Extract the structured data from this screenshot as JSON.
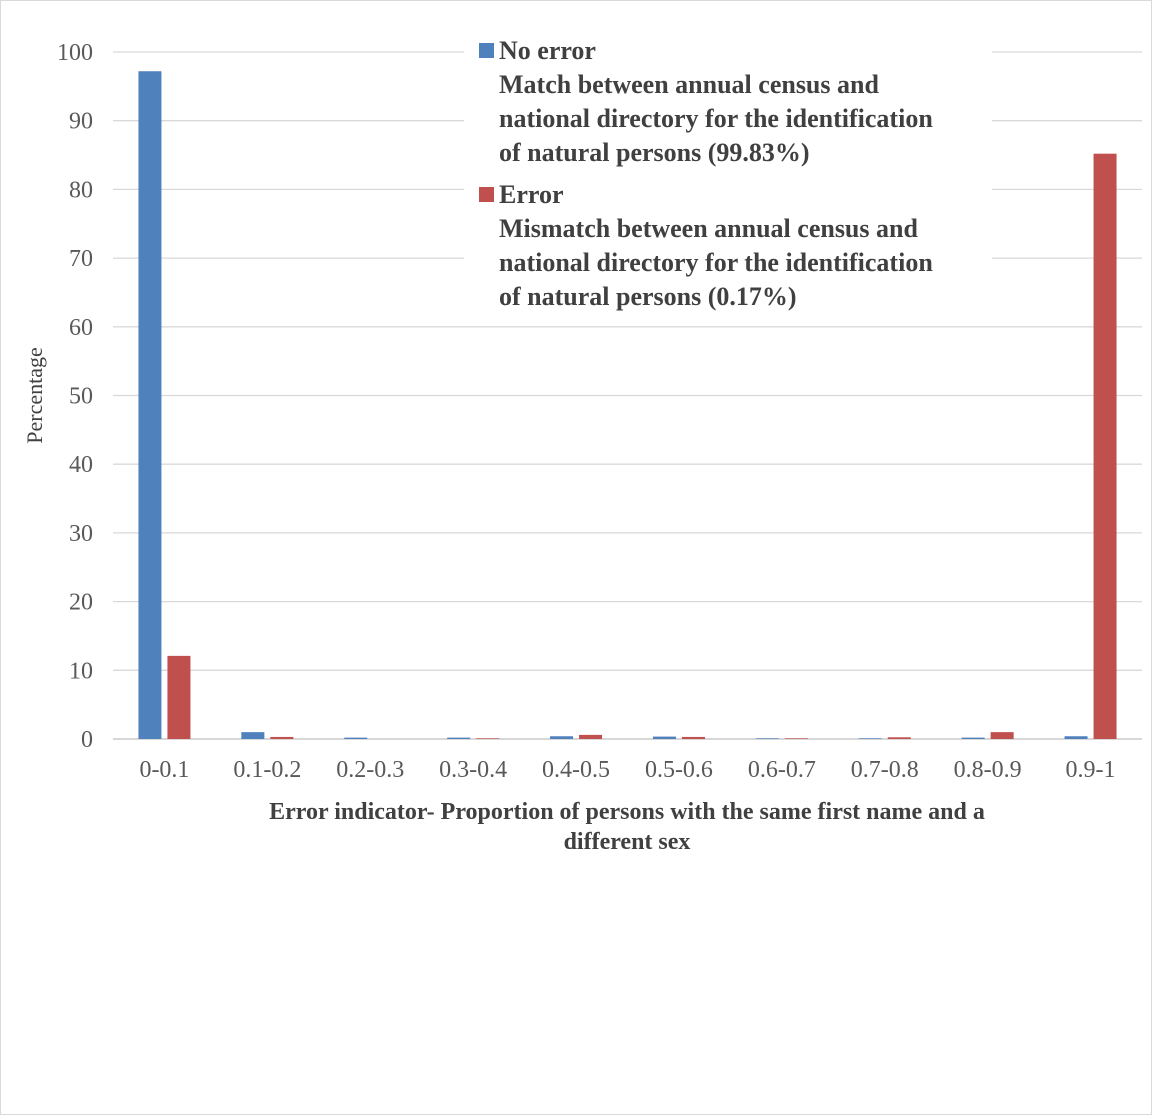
{
  "chart_data": {
    "type": "bar",
    "title": "",
    "ylabel": "Percentage",
    "xlabel_lines": [
      "Error indicator- Proportion of persons with the same first name and a",
      "different sex"
    ],
    "categories": [
      "0-0.1",
      "0.1-0.2",
      "0.2-0.3",
      "0.3-0.4",
      "0.4-0.5",
      "0.5-0.6",
      "0.6-0.7",
      "0.7-0.8",
      "0.8-0.9",
      "0.9-1"
    ],
    "ylim": [
      0,
      100
    ],
    "yticks": [
      0,
      10,
      20,
      30,
      40,
      50,
      60,
      70,
      80,
      90,
      100
    ],
    "grid": true,
    "legend_position": "top-center",
    "series": [
      {
        "name": "No error",
        "legend_lines": [
          "No error",
          "Match between annual census and",
          "national directory for the identification",
          "of natural persons (99.83%)"
        ],
        "color": "#4f81bd",
        "values": [
          97.2,
          1.0,
          0.2,
          0.2,
          0.4,
          0.35,
          0.1,
          0.1,
          0.2,
          0.4
        ]
      },
      {
        "name": "Error",
        "legend_lines": [
          "Error",
          "Mismatch between annual census and",
          "national directory for the identification",
          "of natural persons (0.17%)"
        ],
        "color": "#c0504d",
        "values": [
          12.1,
          0.3,
          0.0,
          0.1,
          0.6,
          0.3,
          0.1,
          0.25,
          1.0,
          85.2
        ]
      }
    ]
  }
}
